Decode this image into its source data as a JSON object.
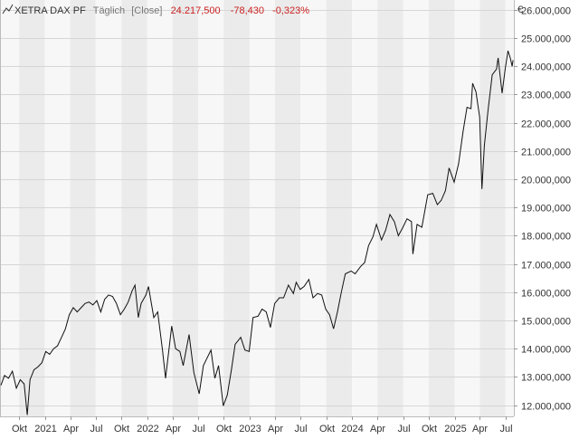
{
  "header": {
    "instrument": "XETRA DAX PF",
    "interval": "Täglich",
    "price_type": "[Close]",
    "last": "24.217,500",
    "change": "-78,430",
    "change_pct": "-0,323%"
  },
  "colors": {
    "background": "#ffffff",
    "plot_band_light": "#f7f7f7",
    "plot_band_dark": "#ebebeb",
    "grid": "#d6d6d6",
    "axis_text": "#333333",
    "header_gray": "#777777",
    "negative": "#cc2222",
    "line": "#111111"
  },
  "chart_data": {
    "type": "line",
    "currency_label": "€",
    "ylim": [
      11600,
      26350
    ],
    "y_ticks": [
      {
        "value": 12000,
        "label": "12.000,000"
      },
      {
        "value": 13000,
        "label": "13.000,000"
      },
      {
        "value": 14000,
        "label": "14.000,000"
      },
      {
        "value": 15000,
        "label": "15.000,000"
      },
      {
        "value": 16000,
        "label": "16.000,000"
      },
      {
        "value": 17000,
        "label": "17.000,000"
      },
      {
        "value": 18000,
        "label": "18.000,000"
      },
      {
        "value": 19000,
        "label": "19.000,000"
      },
      {
        "value": 20000,
        "label": "20.000,000"
      },
      {
        "value": 21000,
        "label": "21.000,000"
      },
      {
        "value": 22000,
        "label": "22.000,000"
      },
      {
        "value": 23000,
        "label": "23.000,000"
      },
      {
        "value": 24000,
        "label": "24.000,000"
      },
      {
        "value": 25000,
        "label": "25.000,000"
      },
      {
        "value": 26000,
        "label": "26.000,000"
      }
    ],
    "xlim": [
      "2020-07-28",
      "2025-07-31"
    ],
    "x_ticks": [
      {
        "date": "2020-10-01",
        "label": "Okt"
      },
      {
        "date": "2021-01-01",
        "label": "2021"
      },
      {
        "date": "2021-04-01",
        "label": "Apr"
      },
      {
        "date": "2021-07-01",
        "label": "Jul"
      },
      {
        "date": "2021-10-01",
        "label": "Okt"
      },
      {
        "date": "2022-01-01",
        "label": "2022"
      },
      {
        "date": "2022-04-01",
        "label": "Apr"
      },
      {
        "date": "2022-07-01",
        "label": "Jul"
      },
      {
        "date": "2022-10-01",
        "label": "Okt"
      },
      {
        "date": "2023-01-01",
        "label": "2023"
      },
      {
        "date": "2023-04-01",
        "label": "Apr"
      },
      {
        "date": "2023-07-01",
        "label": "Jul"
      },
      {
        "date": "2023-10-01",
        "label": "Okt"
      },
      {
        "date": "2024-01-01",
        "label": "2024"
      },
      {
        "date": "2024-04-01",
        "label": "Apr"
      },
      {
        "date": "2024-07-01",
        "label": "Jul"
      },
      {
        "date": "2024-10-01",
        "label": "Okt"
      },
      {
        "date": "2025-01-01",
        "label": "2025"
      },
      {
        "date": "2025-04-01",
        "label": "Apr"
      },
      {
        "date": "2025-07-01",
        "label": "Jul"
      }
    ],
    "grid": true,
    "series": [
      {
        "points": [
          [
            "2020-07-28",
            12700
          ],
          [
            "2020-08-10",
            13050
          ],
          [
            "2020-08-24",
            12950
          ],
          [
            "2020-09-07",
            13200
          ],
          [
            "2020-09-21",
            12600
          ],
          [
            "2020-10-05",
            12900
          ],
          [
            "2020-10-19",
            12750
          ],
          [
            "2020-10-30",
            11650
          ],
          [
            "2020-11-09",
            12900
          ],
          [
            "2020-11-23",
            13250
          ],
          [
            "2020-12-07",
            13350
          ],
          [
            "2020-12-21",
            13500
          ],
          [
            "2021-01-04",
            13900
          ],
          [
            "2021-01-18",
            13800
          ],
          [
            "2021-02-01",
            14000
          ],
          [
            "2021-02-15",
            14100
          ],
          [
            "2021-03-01",
            14400
          ],
          [
            "2021-03-15",
            14700
          ],
          [
            "2021-03-29",
            15200
          ],
          [
            "2021-04-12",
            15450
          ],
          [
            "2021-04-26",
            15300
          ],
          [
            "2021-05-10",
            15450
          ],
          [
            "2021-05-24",
            15600
          ],
          [
            "2021-06-07",
            15650
          ],
          [
            "2021-06-21",
            15550
          ],
          [
            "2021-07-05",
            15700
          ],
          [
            "2021-07-19",
            15300
          ],
          [
            "2021-08-02",
            15750
          ],
          [
            "2021-08-16",
            15900
          ],
          [
            "2021-08-30",
            15850
          ],
          [
            "2021-09-13",
            15600
          ],
          [
            "2021-09-27",
            15200
          ],
          [
            "2021-10-11",
            15400
          ],
          [
            "2021-10-25",
            15650
          ],
          [
            "2021-11-08",
            16050
          ],
          [
            "2021-11-18",
            16250
          ],
          [
            "2021-11-30",
            15100
          ],
          [
            "2021-12-10",
            15600
          ],
          [
            "2021-12-27",
            15900
          ],
          [
            "2022-01-05",
            16200
          ],
          [
            "2022-01-24",
            15100
          ],
          [
            "2022-02-07",
            15300
          ],
          [
            "2022-02-24",
            13950
          ],
          [
            "2022-03-07",
            12950
          ],
          [
            "2022-03-29",
            14800
          ],
          [
            "2022-04-12",
            14000
          ],
          [
            "2022-04-27",
            13900
          ],
          [
            "2022-05-09",
            13400
          ],
          [
            "2022-05-30",
            14500
          ],
          [
            "2022-06-16",
            13150
          ],
          [
            "2022-07-05",
            12400
          ],
          [
            "2022-07-20",
            13400
          ],
          [
            "2022-08-16",
            13950
          ],
          [
            "2022-08-30",
            12950
          ],
          [
            "2022-09-12",
            13400
          ],
          [
            "2022-09-29",
            11975
          ],
          [
            "2022-10-13",
            12350
          ],
          [
            "2022-10-28",
            13250
          ],
          [
            "2022-11-10",
            14150
          ],
          [
            "2022-11-30",
            14400
          ],
          [
            "2022-12-15",
            13950
          ],
          [
            "2022-12-30",
            13900
          ],
          [
            "2023-01-13",
            15100
          ],
          [
            "2023-01-31",
            15150
          ],
          [
            "2023-02-14",
            15400
          ],
          [
            "2023-03-01",
            15300
          ],
          [
            "2023-03-16",
            14750
          ],
          [
            "2023-03-31",
            15600
          ],
          [
            "2023-04-17",
            15800
          ],
          [
            "2023-05-02",
            15800
          ],
          [
            "2023-05-19",
            16250
          ],
          [
            "2023-06-06",
            15950
          ],
          [
            "2023-06-16",
            16350
          ],
          [
            "2023-06-30",
            16100
          ],
          [
            "2023-07-14",
            16200
          ],
          [
            "2023-07-31",
            16450
          ],
          [
            "2023-08-15",
            15800
          ],
          [
            "2023-08-31",
            15950
          ],
          [
            "2023-09-15",
            15900
          ],
          [
            "2023-09-29",
            15400
          ],
          [
            "2023-10-13",
            15200
          ],
          [
            "2023-10-27",
            14700
          ],
          [
            "2023-11-10",
            15300
          ],
          [
            "2023-11-24",
            16000
          ],
          [
            "2023-12-08",
            16650
          ],
          [
            "2023-12-29",
            16750
          ],
          [
            "2024-01-12",
            16650
          ],
          [
            "2024-01-31",
            16900
          ],
          [
            "2024-02-15",
            17050
          ],
          [
            "2024-02-29",
            17650
          ],
          [
            "2024-03-15",
            17950
          ],
          [
            "2024-03-28",
            18400
          ],
          [
            "2024-04-15",
            17850
          ],
          [
            "2024-04-30",
            18200
          ],
          [
            "2024-05-15",
            18750
          ],
          [
            "2024-05-31",
            18500
          ],
          [
            "2024-06-14",
            18000
          ],
          [
            "2024-06-28",
            18250
          ],
          [
            "2024-07-15",
            18600
          ],
          [
            "2024-07-31",
            18500
          ],
          [
            "2024-08-05",
            17350
          ],
          [
            "2024-08-20",
            18400
          ],
          [
            "2024-09-06",
            18300
          ],
          [
            "2024-09-27",
            19450
          ],
          [
            "2024-10-15",
            19500
          ],
          [
            "2024-10-31",
            19100
          ],
          [
            "2024-11-14",
            19250
          ],
          [
            "2024-11-29",
            19600
          ],
          [
            "2024-12-12",
            20400
          ],
          [
            "2024-12-30",
            19900
          ],
          [
            "2025-01-15",
            20550
          ],
          [
            "2025-01-31",
            21700
          ],
          [
            "2025-02-14",
            22550
          ],
          [
            "2025-02-28",
            22500
          ],
          [
            "2025-03-06",
            23400
          ],
          [
            "2025-03-18",
            23100
          ],
          [
            "2025-03-31",
            22200
          ],
          [
            "2025-04-08",
            19650
          ],
          [
            "2025-04-17",
            21200
          ],
          [
            "2025-04-30",
            22450
          ],
          [
            "2025-05-15",
            23700
          ],
          [
            "2025-05-30",
            23900
          ],
          [
            "2025-06-05",
            24300
          ],
          [
            "2025-06-19",
            23050
          ],
          [
            "2025-06-30",
            23900
          ],
          [
            "2025-07-10",
            24550
          ],
          [
            "2025-07-18",
            24300
          ],
          [
            "2025-07-25",
            24000
          ],
          [
            "2025-07-28",
            24217.5
          ]
        ]
      }
    ]
  }
}
